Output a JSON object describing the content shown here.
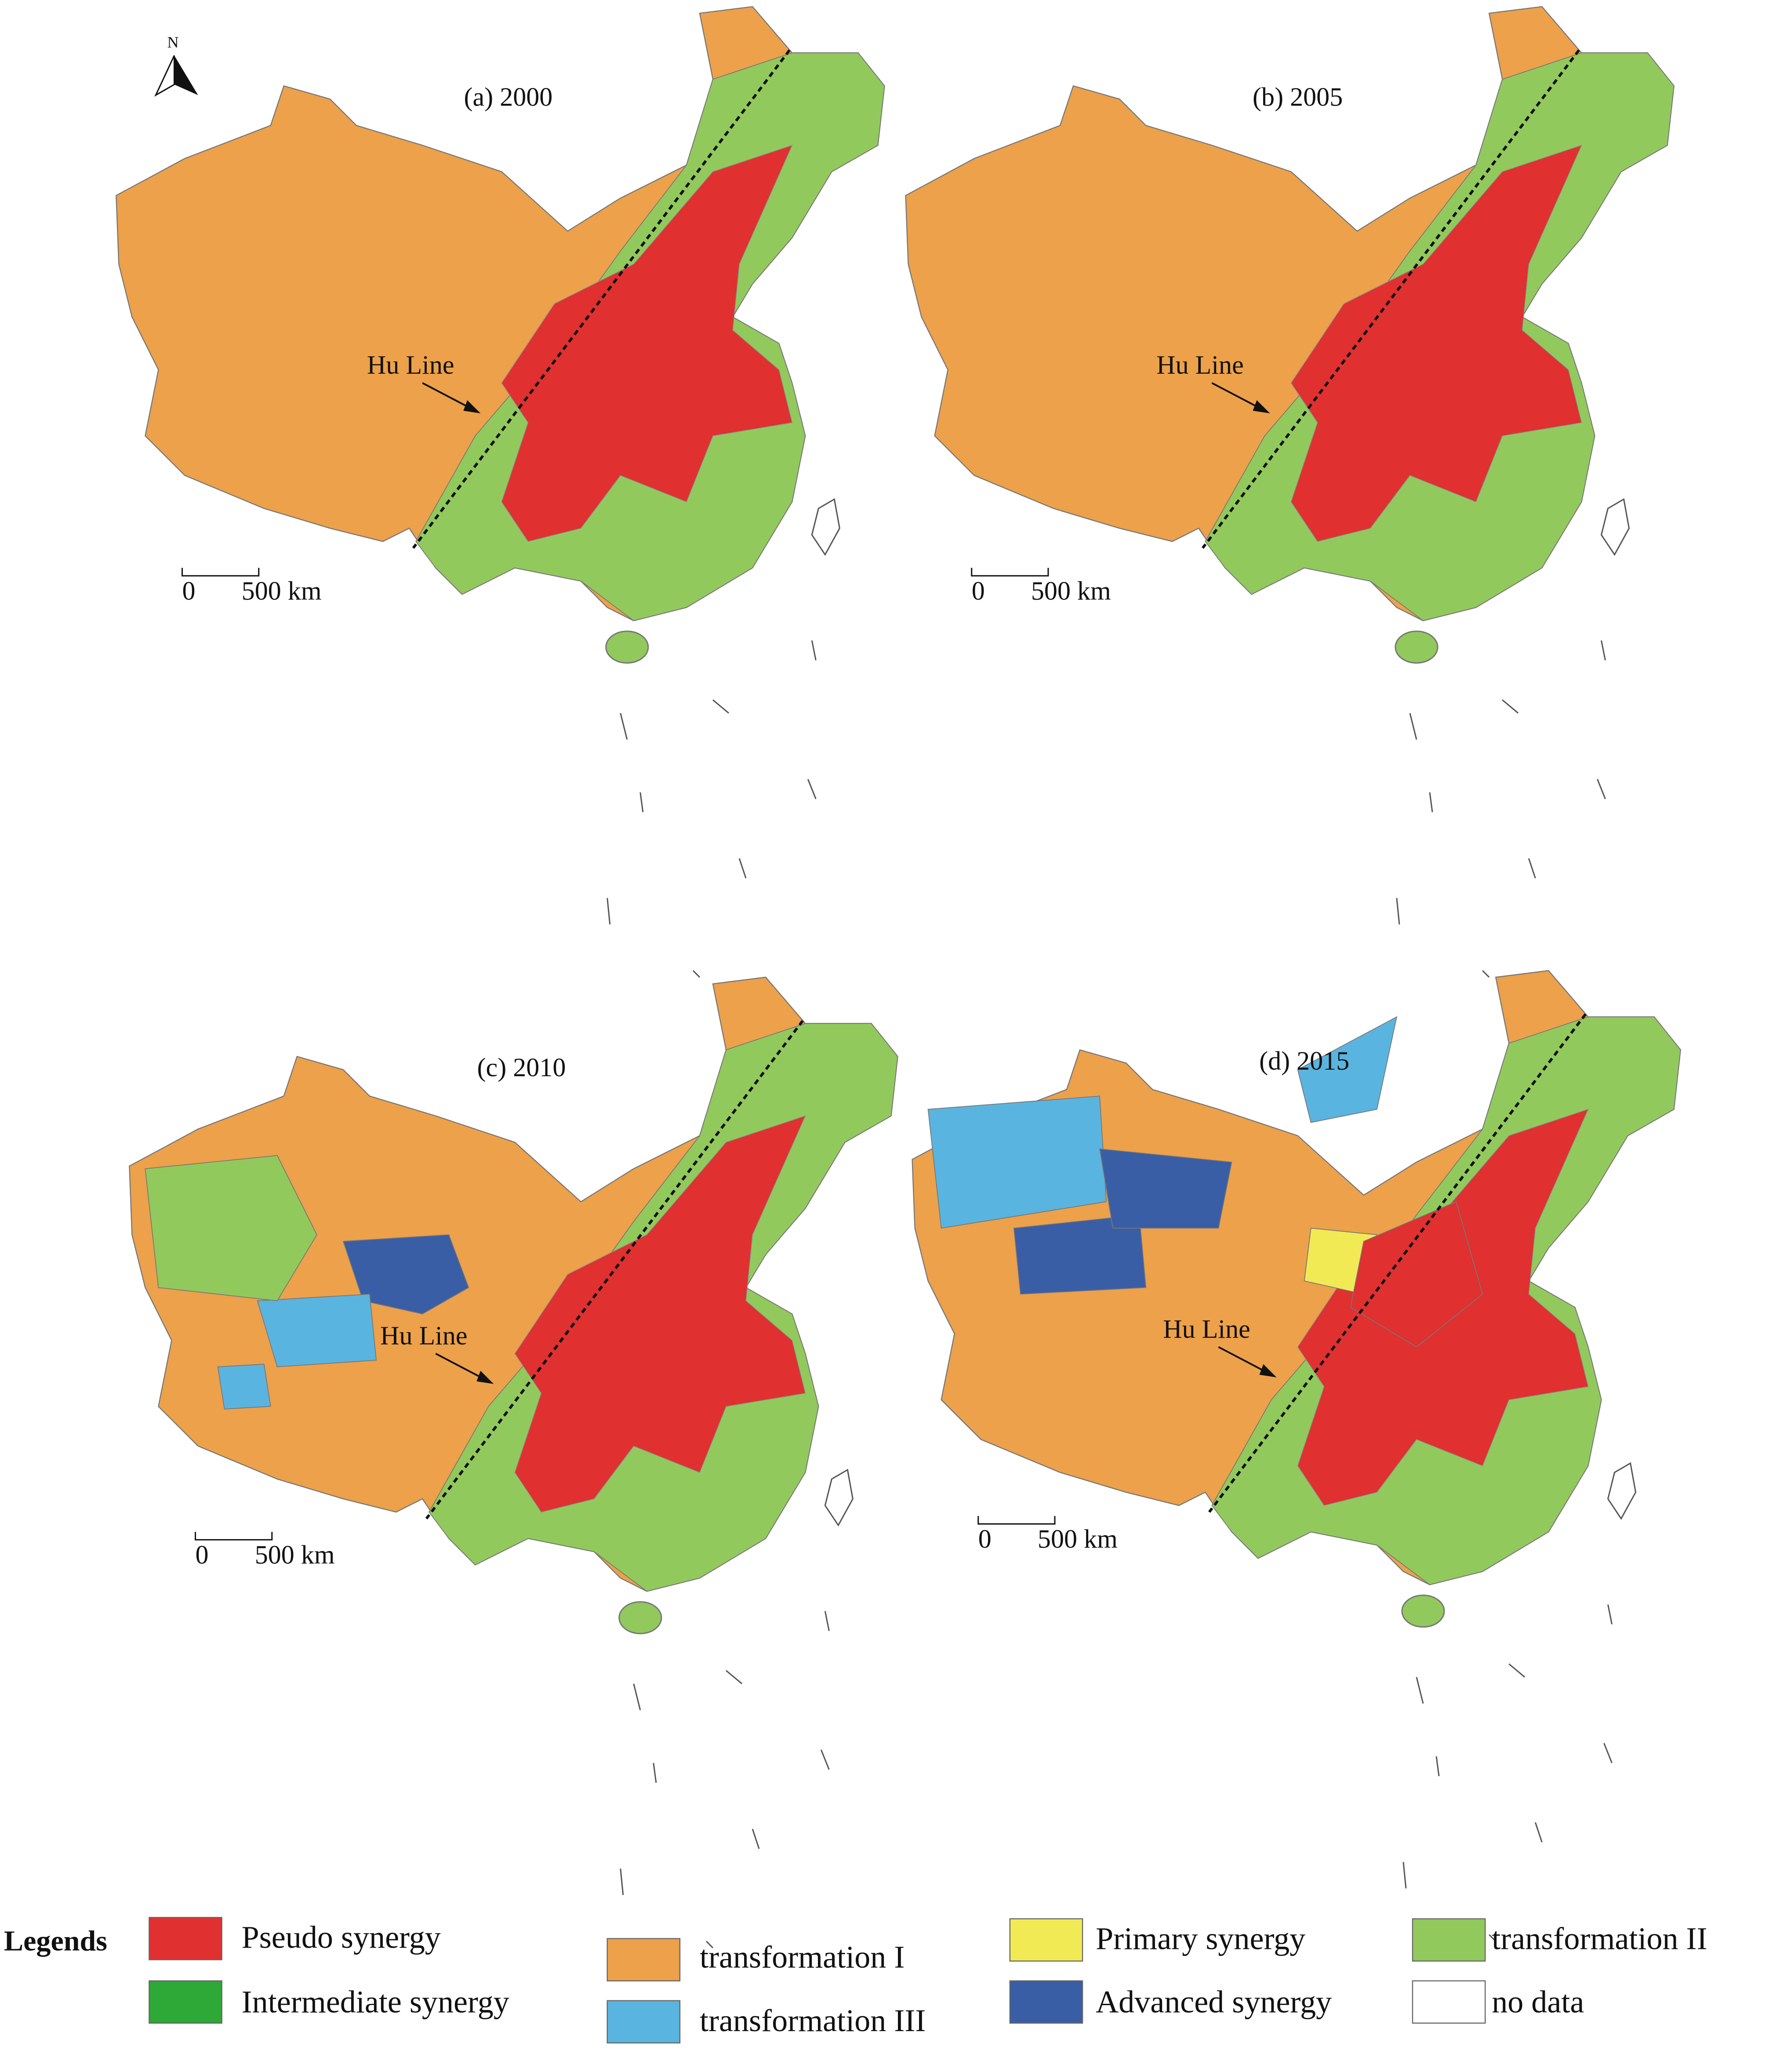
{
  "north_arrow": "N",
  "panels": [
    {
      "title": "(a) 2000",
      "hu_line_label": "Hu  Line",
      "scale_zero": "0",
      "scale_label": "500 km"
    },
    {
      "title": "(b) 2005",
      "hu_line_label": "Hu  Line",
      "scale_zero": "0",
      "scale_label": "500 km"
    },
    {
      "title": "(c) 2010",
      "hu_line_label": "Hu  Line",
      "scale_zero": "0",
      "scale_label": "500 km"
    },
    {
      "title": "(d) 2015",
      "hu_line_label": "Hu  Line",
      "scale_zero": "0",
      "scale_label": "500 km"
    }
  ],
  "legend": {
    "title": "Legends",
    "items": [
      {
        "label": "Pseudo synergy",
        "color": "#e03030"
      },
      {
        "label": "Intermediate synergy",
        "color": "#2ea836"
      },
      {
        "label": "transformation I",
        "color": "#eda14a"
      },
      {
        "label": "transformation III",
        "color": "#5ab4e0"
      },
      {
        "label": "Primary synergy",
        "color": "#f2ea55"
      },
      {
        "label": "Advanced synergy",
        "color": "#3a5ea6"
      },
      {
        "label": "transformation II",
        "color": "#92c95c"
      },
      {
        "label": "no data",
        "color": "#ffffff"
      }
    ]
  }
}
